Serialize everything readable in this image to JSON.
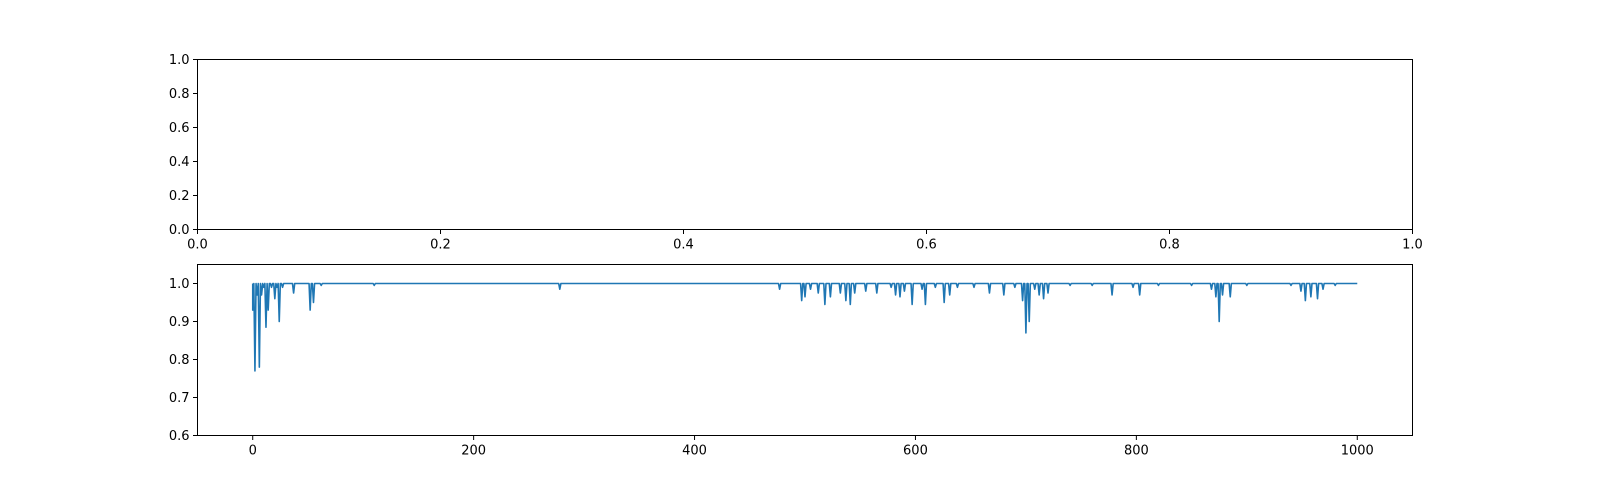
{
  "chart_data": [
    {
      "type": "line",
      "title": "",
      "xlabel": "",
      "ylabel": "",
      "xlim": [
        0,
        1
      ],
      "ylim": [
        0,
        1
      ],
      "x_ticks": [
        0.0,
        0.2,
        0.4,
        0.6,
        0.8,
        1.0
      ],
      "x_tick_labels": [
        "0.0",
        "0.2",
        "0.4",
        "0.6",
        "0.8",
        "1.0"
      ],
      "y_ticks": [
        0.0,
        0.2,
        0.4,
        0.6,
        0.8,
        1.0
      ],
      "y_tick_labels": [
        "0.0",
        "0.2",
        "0.4",
        "0.6",
        "0.8",
        "1.0"
      ],
      "grid": false,
      "series": []
    },
    {
      "type": "line",
      "title": "",
      "xlabel": "",
      "ylabel": "",
      "xlim": [
        -50,
        1050
      ],
      "ylim": [
        0.6,
        1.05
      ],
      "x_ticks": [
        0,
        200,
        400,
        600,
        800,
        1000
      ],
      "x_tick_labels": [
        "0",
        "200",
        "400",
        "600",
        "800",
        "1000"
      ],
      "y_ticks": [
        0.6,
        0.7,
        0.8,
        0.9,
        1.0
      ],
      "y_tick_labels": [
        "0.6",
        "0.7",
        "0.8",
        "0.9",
        "1.0"
      ],
      "grid": false,
      "series": [
        {
          "color": "#1f77b4",
          "baseline": 1.0,
          "x_range": [
            0,
            1000
          ],
          "dips": [
            [
              0,
              0.93
            ],
            [
              2,
              0.77
            ],
            [
              4,
              0.97
            ],
            [
              6,
              0.78
            ],
            [
              8,
              0.97
            ],
            [
              10,
              0.99
            ],
            [
              12,
              0.885
            ],
            [
              14,
              0.93
            ],
            [
              17,
              0.99
            ],
            [
              20,
              0.96
            ],
            [
              22,
              0.99
            ],
            [
              24,
              0.9
            ],
            [
              27,
              0.99
            ],
            [
              37,
              0.975
            ],
            [
              52,
              0.93
            ],
            [
              55,
              0.95
            ],
            [
              62,
              0.995
            ],
            [
              110,
              0.995
            ],
            [
              278,
              0.985
            ],
            [
              477,
              0.985
            ],
            [
              497,
              0.955
            ],
            [
              500,
              0.965
            ],
            [
              505,
              0.985
            ],
            [
              512,
              0.975
            ],
            [
              518,
              0.945
            ],
            [
              523,
              0.965
            ],
            [
              532,
              0.975
            ],
            [
              537,
              0.955
            ],
            [
              541,
              0.945
            ],
            [
              545,
              0.975
            ],
            [
              555,
              0.98
            ],
            [
              565,
              0.975
            ],
            [
              578,
              0.99
            ],
            [
              582,
              0.97
            ],
            [
              586,
              0.965
            ],
            [
              590,
              0.98
            ],
            [
              597,
              0.945
            ],
            [
              606,
              0.985
            ],
            [
              609,
              0.945
            ],
            [
              618,
              0.99
            ],
            [
              626,
              0.95
            ],
            [
              631,
              0.97
            ],
            [
              638,
              0.99
            ],
            [
              653,
              0.99
            ],
            [
              667,
              0.975
            ],
            [
              680,
              0.97
            ],
            [
              690,
              0.99
            ],
            [
              697,
              0.955
            ],
            [
              700,
              0.87
            ],
            [
              703,
              0.9
            ],
            [
              708,
              0.985
            ],
            [
              712,
              0.97
            ],
            [
              716,
              0.96
            ],
            [
              720,
              0.975
            ],
            [
              740,
              0.995
            ],
            [
              760,
              0.995
            ],
            [
              778,
              0.97
            ],
            [
              797,
              0.99
            ],
            [
              803,
              0.97
            ],
            [
              820,
              0.995
            ],
            [
              850,
              0.995
            ],
            [
              868,
              0.985
            ],
            [
              872,
              0.965
            ],
            [
              875,
              0.9
            ],
            [
              878,
              0.97
            ],
            [
              885,
              0.965
            ],
            [
              900,
              0.995
            ],
            [
              940,
              0.995
            ],
            [
              949,
              0.98
            ],
            [
              953,
              0.955
            ],
            [
              958,
              0.965
            ],
            [
              964,
              0.96
            ],
            [
              969,
              0.985
            ],
            [
              980,
              0.995
            ]
          ]
        }
      ]
    }
  ]
}
